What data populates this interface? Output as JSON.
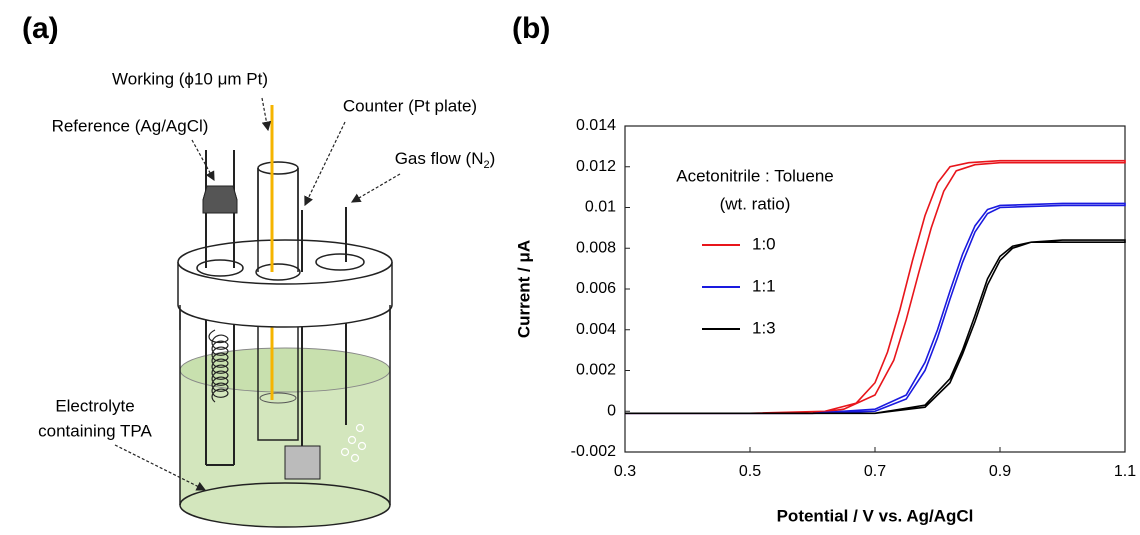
{
  "diagram": {
    "panel_label": "(a)",
    "working": "Working (ϕ10 μm Pt)",
    "counter": "Counter (Pt plate)",
    "reference": "Reference (Ag/AgCl)",
    "gas": [
      "Gas flow (N",
      "2",
      ")"
    ],
    "electrolyte": [
      "Electrolyte",
      "containing TPA"
    ]
  },
  "chart_data": {
    "type": "line",
    "panel_label": "(b)",
    "x_label": "Potential / V vs. Ag/AgCl",
    "y_label": "Current / μA",
    "legend_title": [
      "Acetonitrile : Toluene",
      "(wt. ratio)"
    ],
    "xlim": [
      0.3,
      1.1
    ],
    "xticks": [
      0.3,
      0.5,
      0.7,
      0.9,
      1.1
    ],
    "ylim": [
      -0.002,
      0.014
    ],
    "yticks": [
      -0.002,
      0,
      0.002,
      0.004,
      0.006,
      0.008,
      0.01,
      0.012,
      0.014
    ],
    "series": [
      {
        "name": "1:0",
        "color": "#e8151b",
        "x": [
          0.3,
          0.5,
          0.6,
          0.65,
          0.7,
          0.73,
          0.75,
          0.77,
          0.79,
          0.81,
          0.83,
          0.86,
          0.9,
          1.0,
          1.1,
          1.1,
          1.0,
          0.9,
          0.85,
          0.82,
          0.8,
          0.78,
          0.76,
          0.74,
          0.72,
          0.7,
          0.67,
          0.62,
          0.5,
          0.3
        ],
        "values": [
          -0.0001,
          -0.0001,
          -0.0001,
          0.0001,
          0.0008,
          0.0025,
          0.0045,
          0.0068,
          0.009,
          0.0108,
          0.0118,
          0.0121,
          0.0122,
          0.0122,
          0.0122,
          0.0123,
          0.0123,
          0.0123,
          0.0122,
          0.012,
          0.0112,
          0.0096,
          0.0074,
          0.005,
          0.0029,
          0.0014,
          0.0004,
          0,
          -0.0001,
          -0.0001
        ]
      },
      {
        "name": "1:1",
        "color": "#1a1adf",
        "x": [
          0.3,
          0.6,
          0.7,
          0.75,
          0.78,
          0.8,
          0.82,
          0.84,
          0.86,
          0.88,
          0.9,
          1.0,
          1.1,
          1.1,
          1.0,
          0.9,
          0.88,
          0.86,
          0.84,
          0.82,
          0.8,
          0.78,
          0.75,
          0.7,
          0.6,
          0.3
        ],
        "values": [
          -0.0001,
          -0.0001,
          0,
          0.0006,
          0.002,
          0.0036,
          0.0055,
          0.0073,
          0.0088,
          0.0097,
          0.01,
          0.0101,
          0.0101,
          0.0102,
          0.0102,
          0.0101,
          0.0099,
          0.0091,
          0.0077,
          0.0059,
          0.004,
          0.0024,
          0.0008,
          0.0001,
          -0.0001,
          -0.0001
        ]
      },
      {
        "name": "1:3",
        "color": "#000000",
        "x": [
          0.3,
          0.7,
          0.78,
          0.82,
          0.84,
          0.86,
          0.88,
          0.9,
          0.92,
          0.95,
          1.0,
          1.1,
          1.1,
          1.0,
          0.95,
          0.92,
          0.9,
          0.88,
          0.86,
          0.84,
          0.82,
          0.78,
          0.7,
          0.3
        ],
        "values": [
          -0.0001,
          -0.0001,
          0.0002,
          0.0014,
          0.0028,
          0.0044,
          0.0062,
          0.0074,
          0.008,
          0.0083,
          0.0083,
          0.0083,
          0.0084,
          0.0084,
          0.0083,
          0.0081,
          0.0076,
          0.0065,
          0.0047,
          0.003,
          0.0016,
          0.0003,
          -0.0001,
          -0.0001
        ]
      }
    ]
  }
}
